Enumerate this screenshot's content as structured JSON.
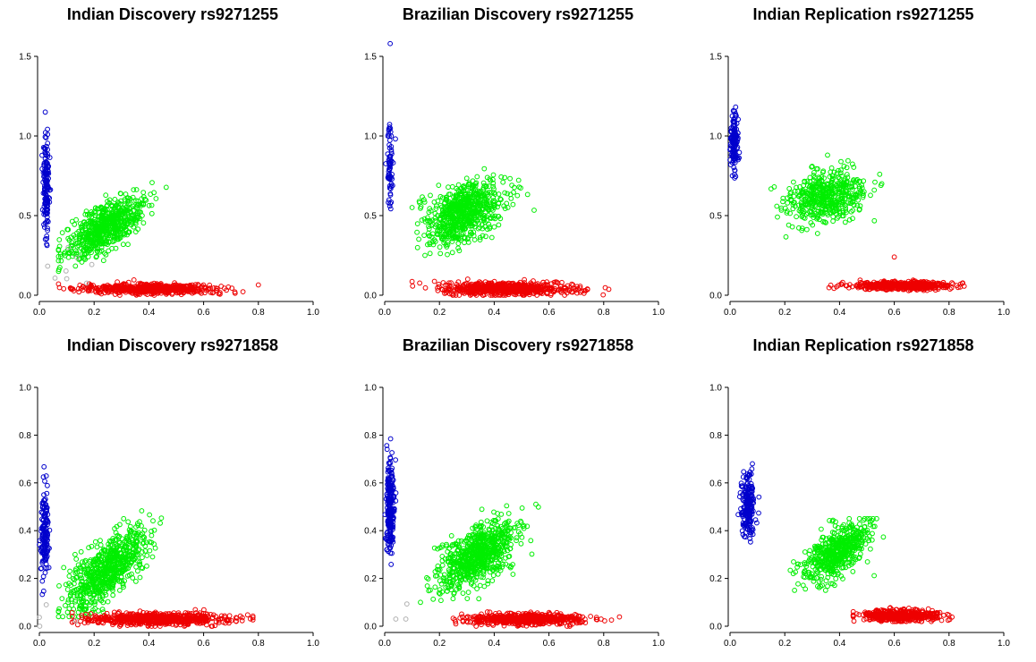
{
  "chart_data": [
    {
      "type": "scatter",
      "title": "Indian Discovery rs9271255",
      "xlim": [
        0,
        1.0
      ],
      "ylim": [
        0,
        1.5
      ],
      "xticks": [
        "0.0",
        "0.2",
        "0.4",
        "0.6",
        "0.8",
        "1.0"
      ],
      "yticks": [
        "0.0",
        "0.5",
        "1.0",
        "1.5"
      ],
      "clusters": [
        {
          "color": "#0000cc",
          "n": 150,
          "x_mean": 0.025,
          "x_sd": 0.006,
          "y_mean": 0.7,
          "y_sd": 0.15,
          "x_range": [
            0.0,
            0.06
          ],
          "y_range": [
            0.3,
            1.15
          ],
          "slope": 0
        },
        {
          "color": "#00ee00",
          "n": 650,
          "x_mean": 0.24,
          "x_sd": 0.07,
          "y_mean": 0.43,
          "y_sd": 0.07,
          "x_range": [
            0.07,
            0.5
          ],
          "y_range": [
            0.15,
            0.76
          ],
          "slope": 0.9
        },
        {
          "color": "#ee0000",
          "n": 600,
          "x_mean": 0.4,
          "x_sd": 0.12,
          "y_mean": 0.04,
          "y_sd": 0.015,
          "x_range": [
            0.07,
            0.8
          ],
          "y_range": [
            0.0,
            0.11
          ],
          "slope": 0
        },
        {
          "color": "#b0b0b0",
          "n": 8,
          "x_mean": 0.1,
          "x_sd": 0.05,
          "y_mean": 0.15,
          "y_sd": 0.1,
          "x_range": [
            0.0,
            0.2
          ],
          "y_range": [
            0.0,
            0.3
          ],
          "slope": 0
        }
      ]
    },
    {
      "type": "scatter",
      "title": "Brazilian Discovery rs9271255",
      "xlim": [
        0,
        1.0
      ],
      "ylim": [
        0,
        1.5
      ],
      "xticks": [
        "0.0",
        "0.2",
        "0.4",
        "0.6",
        "0.8",
        "1.0"
      ],
      "yticks": [
        "0.0",
        "0.5",
        "1.0",
        "1.5"
      ],
      "clusters": [
        {
          "color": "#0000cc",
          "n": 70,
          "x_mean": 0.02,
          "x_sd": 0.006,
          "y_mean": 0.82,
          "y_sd": 0.12,
          "x_range": [
            0.0,
            0.05
          ],
          "y_range": [
            0.5,
            1.1
          ],
          "slope": 0
        },
        {
          "color": "#00ee00",
          "n": 700,
          "x_mean": 0.29,
          "x_sd": 0.07,
          "y_mean": 0.52,
          "y_sd": 0.09,
          "x_range": [
            0.1,
            0.55
          ],
          "y_range": [
            0.25,
            0.92
          ],
          "slope": 0.5
        },
        {
          "color": "#ee0000",
          "n": 650,
          "x_mean": 0.45,
          "x_sd": 0.12,
          "y_mean": 0.04,
          "y_sd": 0.02,
          "x_range": [
            0.1,
            0.85
          ],
          "y_range": [
            0.0,
            0.19
          ],
          "slope": 0
        }
      ],
      "outliers": [
        {
          "color": "#0000cc",
          "x": 0.02,
          "y": 1.58
        }
      ]
    },
    {
      "type": "scatter",
      "title": "Indian Replication rs9271255",
      "xlim": [
        0,
        1.0
      ],
      "ylim": [
        0,
        1.5
      ],
      "xticks": [
        "0.0",
        "0.2",
        "0.4",
        "0.6",
        "0.8",
        "1.0"
      ],
      "yticks": [
        "0.0",
        "0.5",
        "1.0",
        "1.5"
      ],
      "clusters": [
        {
          "color": "#0000cc",
          "n": 130,
          "x_mean": 0.015,
          "x_sd": 0.007,
          "y_mean": 0.95,
          "y_sd": 0.1,
          "x_range": [
            0.0,
            0.05
          ],
          "y_range": [
            0.62,
            1.27
          ],
          "slope": 0
        },
        {
          "color": "#00ee00",
          "n": 500,
          "x_mean": 0.35,
          "x_sd": 0.07,
          "y_mean": 0.62,
          "y_sd": 0.08,
          "x_range": [
            0.15,
            0.56
          ],
          "y_range": [
            0.31,
            0.88
          ],
          "slope": 0.3
        },
        {
          "color": "#ee0000",
          "n": 550,
          "x_mean": 0.63,
          "x_sd": 0.09,
          "y_mean": 0.06,
          "y_sd": 0.012,
          "x_range": [
            0.35,
            0.9
          ],
          "y_range": [
            0.02,
            0.12
          ],
          "slope": 0
        }
      ],
      "outliers": [
        {
          "color": "#ee0000",
          "x": 0.6,
          "y": 0.24
        }
      ]
    },
    {
      "type": "scatter",
      "title": "Indian Discovery rs9271858",
      "xlim": [
        0,
        1.0
      ],
      "ylim": [
        0,
        1.0
      ],
      "xticks": [
        "0.0",
        "0.2",
        "0.4",
        "0.6",
        "0.8",
        "1.0"
      ],
      "yticks": [
        "0.0",
        "0.2",
        "0.4",
        "0.6",
        "0.8",
        "1.0"
      ],
      "clusters": [
        {
          "color": "#0000cc",
          "n": 150,
          "x_mean": 0.02,
          "x_sd": 0.007,
          "y_mean": 0.4,
          "y_sd": 0.1,
          "x_range": [
            0.0,
            0.06
          ],
          "y_range": [
            0.04,
            0.79
          ],
          "slope": 0
        },
        {
          "color": "#00ee00",
          "n": 700,
          "x_mean": 0.25,
          "x_sd": 0.07,
          "y_mean": 0.24,
          "y_sd": 0.06,
          "x_range": [
            0.07,
            0.52
          ],
          "y_range": [
            0.04,
            0.51
          ],
          "slope": 0.8
        },
        {
          "color": "#ee0000",
          "n": 650,
          "x_mean": 0.43,
          "x_sd": 0.13,
          "y_mean": 0.03,
          "y_sd": 0.012,
          "x_range": [
            0.12,
            0.78
          ],
          "y_range": [
            0.0,
            0.07
          ],
          "slope": 0
        },
        {
          "color": "#b0b0b0",
          "n": 4,
          "x_mean": 0.05,
          "x_sd": 0.04,
          "y_mean": 0.04,
          "y_sd": 0.03,
          "x_range": [
            0.0,
            0.15
          ],
          "y_range": [
            0.0,
            0.1
          ],
          "slope": 0
        }
      ]
    },
    {
      "type": "scatter",
      "title": "Brazilian Discovery rs9271858",
      "xlim": [
        0,
        1.0
      ],
      "ylim": [
        0,
        1.0
      ],
      "xticks": [
        "0.0",
        "0.2",
        "0.4",
        "0.6",
        "0.8",
        "1.0"
      ],
      "yticks": [
        "0.0",
        "0.2",
        "0.4",
        "0.6",
        "0.8",
        "1.0"
      ],
      "clusters": [
        {
          "color": "#0000cc",
          "n": 250,
          "x_mean": 0.02,
          "x_sd": 0.007,
          "y_mean": 0.5,
          "y_sd": 0.1,
          "x_range": [
            0.0,
            0.06
          ],
          "y_range": [
            0.11,
            0.88
          ],
          "slope": 0
        },
        {
          "color": "#00ee00",
          "n": 750,
          "x_mean": 0.34,
          "x_sd": 0.07,
          "y_mean": 0.3,
          "y_sd": 0.06,
          "x_range": [
            0.1,
            0.64
          ],
          "y_range": [
            0.1,
            0.56
          ],
          "slope": 0.6
        },
        {
          "color": "#ee0000",
          "n": 600,
          "x_mean": 0.52,
          "x_sd": 0.1,
          "y_mean": 0.03,
          "y_sd": 0.012,
          "x_range": [
            0.22,
            0.97
          ],
          "y_range": [
            0.0,
            0.12
          ],
          "slope": 0
        },
        {
          "color": "#b0b0b0",
          "n": 3,
          "x_mean": 0.06,
          "x_sd": 0.03,
          "y_mean": 0.06,
          "y_sd": 0.03,
          "x_range": [
            0.02,
            0.12
          ],
          "y_range": [
            0.03,
            0.1
          ],
          "slope": 0
        }
      ]
    },
    {
      "type": "scatter",
      "title": "Indian Replication rs9271858",
      "xlim": [
        0,
        1.0
      ],
      "ylim": [
        0,
        1.0
      ],
      "xticks": [
        "0.0",
        "0.2",
        "0.4",
        "0.6",
        "0.8",
        "1.0"
      ],
      "yticks": [
        "0.0",
        "0.2",
        "0.4",
        "0.6",
        "0.8",
        "1.0"
      ],
      "clusters": [
        {
          "color": "#0000cc",
          "n": 200,
          "x_mean": 0.065,
          "x_sd": 0.012,
          "y_mean": 0.5,
          "y_sd": 0.07,
          "x_range": [
            0.02,
            0.11
          ],
          "y_range": [
            0.27,
            0.72
          ],
          "slope": 0
        },
        {
          "color": "#00ee00",
          "n": 550,
          "x_mean": 0.39,
          "x_sd": 0.06,
          "y_mean": 0.31,
          "y_sd": 0.05,
          "x_range": [
            0.22,
            0.56
          ],
          "y_range": [
            0.15,
            0.45
          ],
          "slope": 0.6
        },
        {
          "color": "#ee0000",
          "n": 450,
          "x_mean": 0.63,
          "x_sd": 0.07,
          "y_mean": 0.045,
          "y_sd": 0.012,
          "x_range": [
            0.45,
            0.83
          ],
          "y_range": [
            0.02,
            0.1
          ],
          "slope": 0
        }
      ]
    }
  ]
}
